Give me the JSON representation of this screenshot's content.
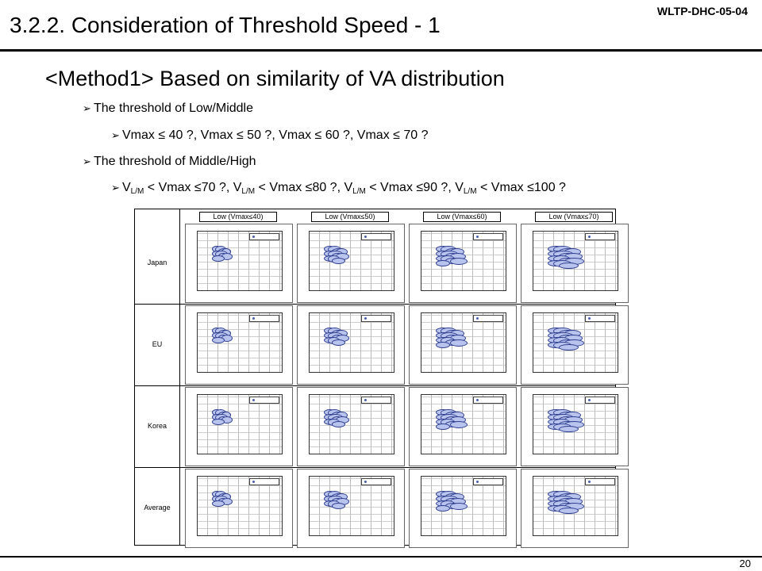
{
  "header": {
    "doc_id": "WLTP-DHC-05-04",
    "title": "3.2.2. Consideration of Threshold Speed - 1"
  },
  "heading": "<Method1> Based on similarity of VA distribution",
  "bullets": {
    "b1": "The threshold of Low/Middle",
    "b1_sub": "Vmax ≤ 40 ?, Vmax ≤ 50 ?, Vmax ≤ 60 ?, Vmax ≤ 70 ?",
    "b2": "The threshold of Middle/High",
    "b2_sub": {
      "v": "V",
      "lm": "L/M",
      "p1": " < Vmax ≤70 ?, ",
      "p2": " < Vmax ≤80 ?, ",
      "p3": " < Vmax ≤90 ?, ",
      "p4": " < Vmax ≤100 ?"
    }
  },
  "grid": {
    "columns": [
      "Low (Vmax≤40)",
      "Low (Vmax≤50)",
      "Low (Vmax≤60)",
      "Low (Vmax≤70)"
    ],
    "rows": [
      "Japan",
      "EU",
      "Korea",
      "Average"
    ]
  },
  "footer": {
    "page": "20"
  }
}
